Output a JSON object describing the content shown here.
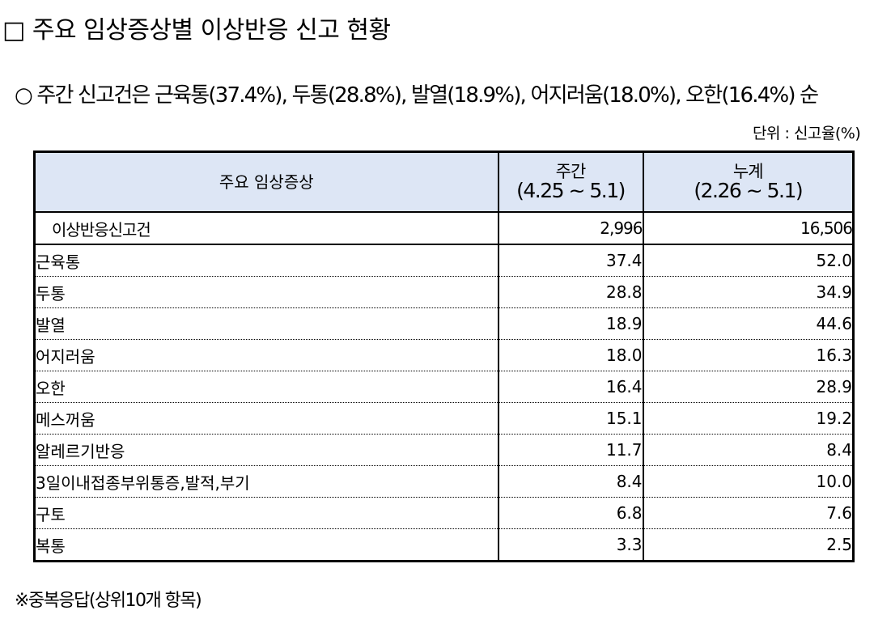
{
  "heading": "□ 주요 임상증상별 이상반응 신고 현황",
  "summary": "○ 주간 신고건은 근육통(37.4%), 두통(28.8%), 발열(18.9%), 어지러움(18.0%), 오한(16.4%) 순",
  "unit": "단위 : 신고율(%)",
  "table": {
    "headers": {
      "symptom": "주요 임상증상",
      "weekly": "주간",
      "weekly_period": "(4.25 ~ 5.1)",
      "cumulative": "누계",
      "cumulative_period": "(2.26 ~ 5.1)"
    },
    "total": {
      "label": "이상반응신고건",
      "weekly": "2,996",
      "cumulative": "16,506"
    },
    "rows": [
      {
        "label": "근육통",
        "weekly": "37.4",
        "cumulative": "52.0"
      },
      {
        "label": "두통",
        "weekly": "28.8",
        "cumulative": "34.9"
      },
      {
        "label": "발열",
        "weekly": "18.9",
        "cumulative": "44.6"
      },
      {
        "label": "어지러움",
        "weekly": "18.0",
        "cumulative": "16.3"
      },
      {
        "label": "오한",
        "weekly": "16.4",
        "cumulative": "28.9"
      },
      {
        "label": "메스꺼움",
        "weekly": "15.1",
        "cumulative": "19.2"
      },
      {
        "label": "알레르기반응",
        "weekly": "11.7",
        "cumulative": "8.4"
      },
      {
        "label": "3일이내접종부위통증,발적,부기",
        "weekly": "8.4",
        "cumulative": "10.0"
      },
      {
        "label": "구토",
        "weekly": "6.8",
        "cumulative": "7.6"
      },
      {
        "label": "복통",
        "weekly": "3.3",
        "cumulative": "2.5"
      }
    ]
  },
  "footnote": "※중복응답(상위10개 항목)"
}
